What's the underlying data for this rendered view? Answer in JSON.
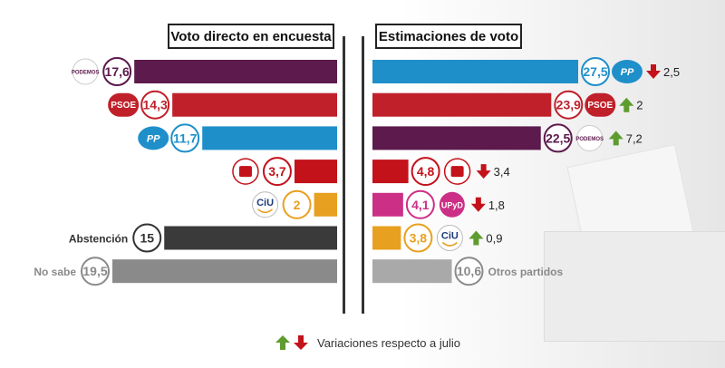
{
  "headers": {
    "left": "Voto directo en encuesta",
    "right": "Estimaciones de voto"
  },
  "legend": {
    "text": "Variaciones respecto a julio"
  },
  "chart_data": [
    {
      "type": "bar",
      "title": "Voto directo en encuesta",
      "orientation": "horizontal",
      "categories": [
        "Podemos",
        "PSOE",
        "PP",
        "IU",
        "CiU",
        "Abstención",
        "No sabe"
      ],
      "values": [
        17.6,
        14.3,
        11.7,
        3.7,
        2,
        15,
        19.5
      ],
      "value_labels": [
        "17,6",
        "14,3",
        "11,7",
        "3,7",
        "2",
        "15",
        "19,5"
      ],
      "text_labels": [
        "",
        "",
        "",
        "",
        "",
        "Abstención",
        "No sabe"
      ],
      "logos": [
        {
          "kind": "podemos",
          "text": "PODEMOS"
        },
        {
          "kind": "psoe",
          "text": "PSOE"
        },
        {
          "kind": "pp",
          "text": "PP"
        },
        {
          "kind": "iu",
          "text": ""
        },
        {
          "kind": "ciu",
          "text": "CiU"
        },
        null,
        null
      ],
      "colors": [
        "#5c1a4d",
        "#c0202a",
        "#1f8fca",
        "#c3121a",
        "#e8a020",
        "#3a3a3a",
        "#8a8a8a"
      ],
      "circle_colors": [
        "#5c1a4d",
        "#c0202a",
        "#1f8fca",
        "#c3121a",
        "#e8a020",
        "#333333",
        "#8a8a8a"
      ]
    },
    {
      "type": "bar",
      "title": "Estimaciones de voto",
      "orientation": "horizontal",
      "categories": [
        "PP",
        "PSOE",
        "Podemos",
        "IU",
        "UPyD",
        "CiU",
        "Otros partidos"
      ],
      "values": [
        27.5,
        23.9,
        22.5,
        4.8,
        4.1,
        3.8,
        10.6
      ],
      "value_labels": [
        "27,5",
        "23,9",
        "22,5",
        "4,8",
        "4,1",
        "3,8",
        "10,6"
      ],
      "text_labels": [
        "",
        "",
        "",
        "",
        "",
        "",
        "Otros partidos"
      ],
      "logos": [
        {
          "kind": "pp",
          "text": "PP"
        },
        {
          "kind": "psoe",
          "text": "PSOE"
        },
        {
          "kind": "podemos",
          "text": "PODEMOS"
        },
        {
          "kind": "iu",
          "text": ""
        },
        {
          "kind": "upyd",
          "text": "UPyD"
        },
        {
          "kind": "ciu",
          "text": "CiU"
        },
        null
      ],
      "colors": [
        "#1f8fca",
        "#c0202a",
        "#5c1a4d",
        "#c3121a",
        "#cc2f86",
        "#e8a020",
        "#a9a9a9"
      ],
      "circle_colors": [
        "#1f8fca",
        "#c0202a",
        "#5c1a4d",
        "#c3121a",
        "#cc2f86",
        "#e8a020",
        "#8a8a8a"
      ],
      "variations": [
        {
          "direction": "down",
          "label": "2,5"
        },
        {
          "direction": "up",
          "label": "2"
        },
        {
          "direction": "up",
          "label": "7,2"
        },
        {
          "direction": "down",
          "label": "3,4"
        },
        {
          "direction": "down",
          "label": "1,8"
        },
        {
          "direction": "up",
          "label": "0,9"
        },
        null
      ]
    }
  ],
  "colors": {
    "up_arrow": "#5e9c2f",
    "down_arrow": "#c3121a"
  }
}
